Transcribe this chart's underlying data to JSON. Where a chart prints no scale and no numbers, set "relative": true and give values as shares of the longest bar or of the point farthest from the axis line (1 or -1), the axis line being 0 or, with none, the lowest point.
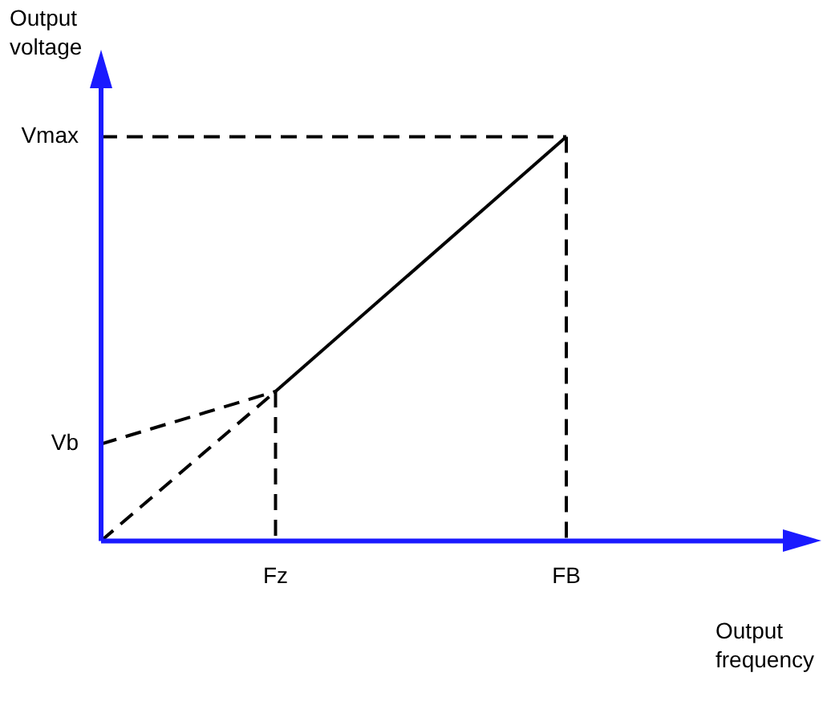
{
  "chart_data": {
    "type": "line",
    "xlabel": "Output frequency",
    "ylabel": "Output voltage",
    "relative": true,
    "categories": [
      null,
      null,
      null,
      "Fz",
      null,
      null,
      null,
      null,
      "FB",
      null,
      null,
      null,
      null
    ],
    "grid": false,
    "legend": false,
    "marker": "none",
    "series": [
      {
        "color": "#000000",
        "line_style": "solid",
        "values": [
          null,
          null,
          null,
          0.37,
          null,
          null,
          null,
          null,
          1,
          null,
          null,
          null,
          null
        ]
      },
      {
        "color": "#000000",
        "line_style": "dashed",
        "values": [
          0,
          null,
          null,
          0.37,
          null,
          null,
          null,
          null,
          null,
          null,
          null,
          null,
          null
        ]
      },
      {
        "name": "Vb",
        "color": "#000000",
        "line_style": "dashed",
        "values": [
          0.24,
          null,
          null,
          0.37,
          null,
          null,
          null,
          null,
          null,
          null,
          null,
          null,
          null
        ]
      },
      {
        "name": "Vmax",
        "color": "#000000",
        "line_style": "dashed",
        "values": [
          1,
          null,
          null,
          null,
          null,
          null,
          null,
          null,
          1,
          null,
          null,
          null,
          null
        ]
      },
      {
        "color": "#000000",
        "line_style": "dashed",
        "x": [
          "FB",
          "FB"
        ],
        "values": [
          1,
          0
        ]
      },
      {
        "color": "#000000",
        "line_style": "dashed",
        "x": [
          "Fz",
          "Fz"
        ],
        "values": [
          0.37,
          0
        ]
      }
    ]
  }
}
